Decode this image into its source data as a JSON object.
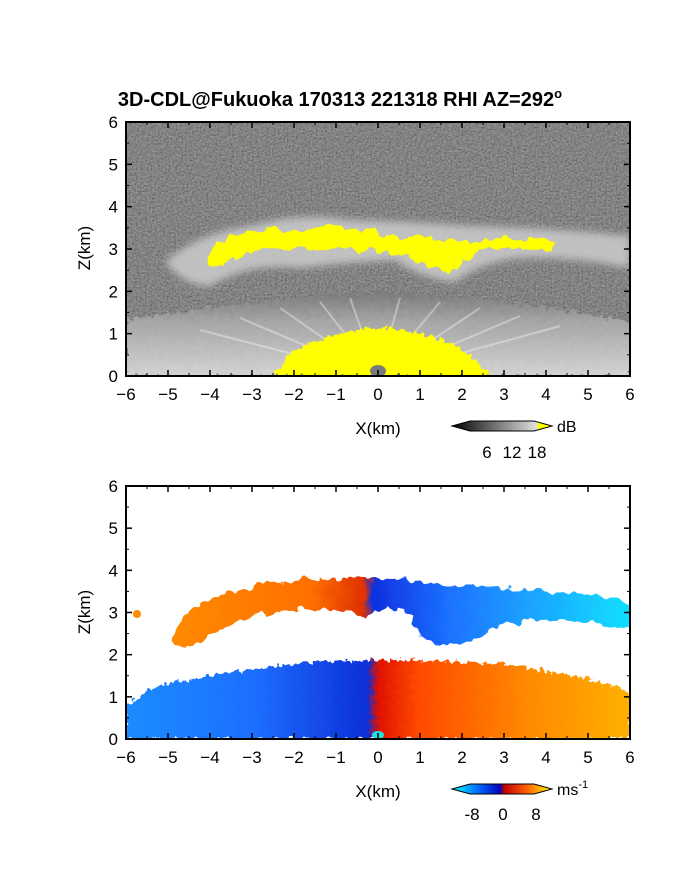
{
  "chart_data": [
    {
      "type": "heatmap",
      "title": "3D-CDL@Fukuoka 170313 221318 RHI AZ=292",
      "title_superscript": "o",
      "xlabel": "X(km)",
      "ylabel": "Z(km)",
      "xlim": [
        -6,
        6
      ],
      "ylim": [
        0,
        6
      ],
      "x_ticks": [
        "-6",
        "-5",
        "-4",
        "-3",
        "-2",
        "-1",
        "0",
        "1",
        "2",
        "3",
        "4",
        "5",
        "6"
      ],
      "y_ticks": [
        "0",
        "1",
        "2",
        "3",
        "4",
        "5",
        "6"
      ],
      "quantity": "backscatter intensity",
      "colorbar": {
        "unit": "dB",
        "ticks": [
          "6",
          "12",
          "18"
        ],
        "range": [
          0,
          20
        ],
        "colors": [
          "#000000",
          "#777777",
          "#dddddd",
          "#ffff00"
        ]
      },
      "background_color": "#2a2a2a",
      "features": [
        {
          "name": "cloud layer",
          "x_range": [
            -6,
            6
          ],
          "z_range": [
            2.2,
            3.8
          ],
          "level_dB": "6-20"
        },
        {
          "name": "boundary layer",
          "x_range": [
            -6,
            6
          ],
          "z_range": [
            0,
            1.9
          ],
          "level_dB": "6-20"
        }
      ]
    },
    {
      "type": "heatmap",
      "xlabel": "X(km)",
      "ylabel": "Z(km)",
      "xlim": [
        -6,
        6
      ],
      "ylim": [
        0,
        6
      ],
      "x_ticks": [
        "-6",
        "-5",
        "-4",
        "-3",
        "-2",
        "-1",
        "0",
        "1",
        "2",
        "3",
        "4",
        "5",
        "6"
      ],
      "y_ticks": [
        "0",
        "1",
        "2",
        "3",
        "4",
        "5",
        "6"
      ],
      "quantity": "radial velocity",
      "colorbar": {
        "unit": "ms",
        "unit_superscript": "-1",
        "ticks": [
          "-8",
          "0",
          "8"
        ],
        "range": [
          -10,
          10
        ],
        "colors": [
          "#00ffff",
          "#0040ff",
          "#0000cc",
          "#cc0000",
          "#ff6600",
          "#ffff00"
        ]
      },
      "background_color": "#ffffff",
      "features": [
        {
          "name": "cloud layer",
          "x_range": [
            -5.8,
            6
          ],
          "z_range": [
            2.2,
            3.9
          ],
          "velocity_ms": "-8 to 8"
        },
        {
          "name": "boundary layer",
          "x_range": [
            -6,
            6
          ],
          "z_range": [
            0,
            1.9
          ],
          "velocity_ms": "-8 to 8"
        }
      ]
    }
  ]
}
